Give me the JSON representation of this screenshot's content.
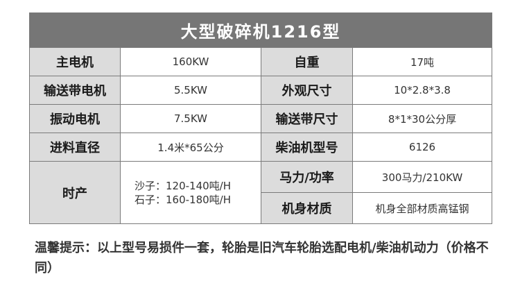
{
  "title": "大型破碎机1216型",
  "rows": [
    {
      "l1": "主电机",
      "v1": "160KW",
      "l2": "自重",
      "v2": "17吨"
    },
    {
      "l1": "输送带电机",
      "v1": "5.5KW",
      "l2": "外观尺寸",
      "v2": "10*2.8*3.8"
    },
    {
      "l1": "振动电机",
      "v1": "7.5KW",
      "l2": "输送带尺寸",
      "v2": "8*1*30公分厚"
    },
    {
      "l1": "进料直径",
      "v1": "1.4米*65公分",
      "l2": "柴油机型号",
      "v2": "6126"
    }
  ],
  "output": {
    "label": "时产",
    "sand": "沙子：120-140吨/H",
    "stone": "石子：160-180吨/H",
    "power_label": "马力/功率",
    "power_value": "300马力/210KW",
    "material_label": "机身材质",
    "material_value": "机身全部材质高锰钢"
  },
  "note": "温馨提示：以上型号易损件一套，轮胎是旧汽车轮胎选配电机/柴油机动力（价格不同）",
  "colors": {
    "header_bg": "#767676",
    "label_bg": "#dcdcdc",
    "border": "#7a7a7a"
  }
}
